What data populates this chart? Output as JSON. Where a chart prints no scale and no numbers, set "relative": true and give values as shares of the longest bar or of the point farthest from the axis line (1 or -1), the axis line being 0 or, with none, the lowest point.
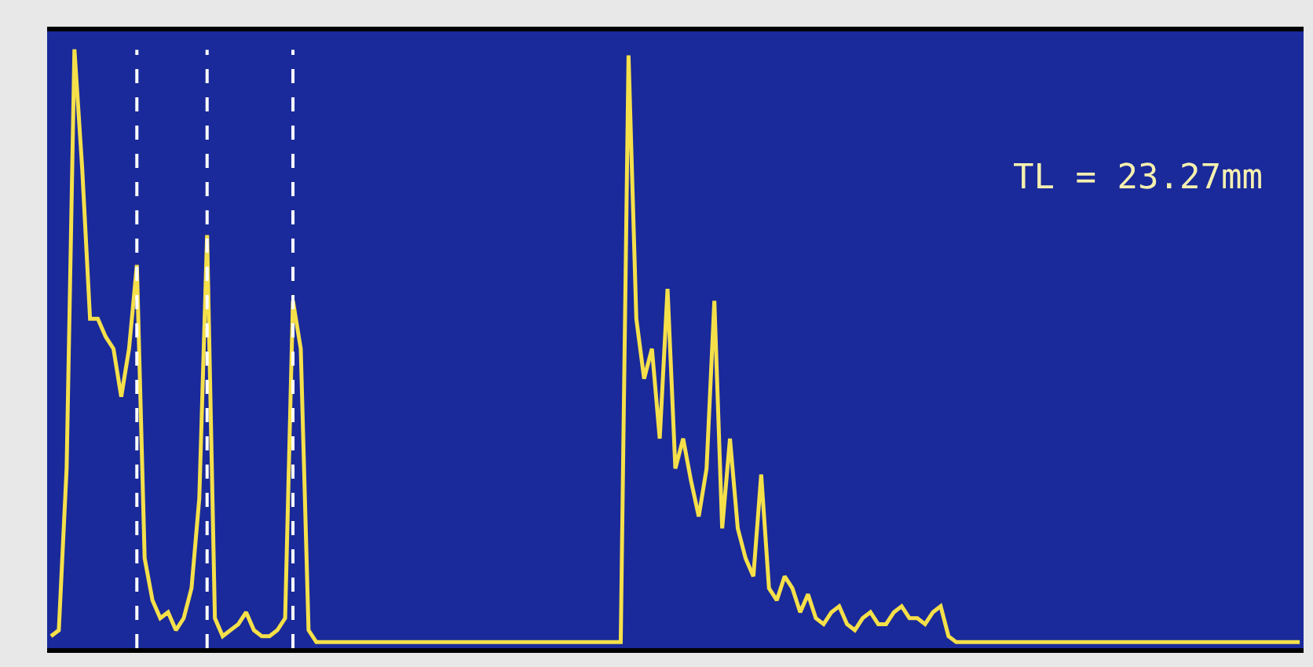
{
  "chart_data": {
    "type": "line",
    "relative": true,
    "annotations": [
      "TL = 23.27mm"
    ],
    "categories": [
      null,
      null,
      null,
      null,
      null,
      null,
      null,
      null,
      null,
      null,
      null,
      null,
      null,
      null,
      null,
      null,
      null,
      null,
      null,
      null,
      null,
      null,
      null,
      null,
      null,
      null,
      null,
      null,
      null,
      null,
      null,
      null,
      null,
      null,
      null,
      null,
      null,
      null,
      null,
      null,
      null,
      null,
      null,
      null,
      null,
      null,
      null,
      null,
      null,
      null,
      null,
      null,
      null,
      null,
      null,
      null,
      null,
      null,
      null,
      null,
      null,
      null,
      null,
      null,
      null,
      null,
      null,
      null,
      null,
      null,
      null,
      null,
      null,
      null,
      null,
      null,
      null,
      null,
      null,
      null,
      null,
      null,
      null,
      null,
      null,
      null,
      null,
      null,
      null,
      null,
      null,
      null,
      null,
      null,
      null,
      null,
      null,
      null,
      null,
      null,
      null,
      null,
      null,
      null,
      null,
      null,
      null,
      null,
      null,
      null,
      null,
      null,
      null,
      null,
      null,
      null,
      null,
      null,
      null,
      null,
      null,
      null,
      null,
      null,
      null,
      null,
      null,
      null,
      null,
      null,
      null,
      null,
      null,
      null,
      null,
      null,
      null,
      null,
      null,
      null,
      null,
      null,
      null,
      null,
      null,
      null,
      null,
      null,
      null,
      null,
      null,
      null,
      null,
      null,
      null,
      null,
      null,
      null,
      null,
      null,
      null
    ],
    "series": [
      {
        "color": "#f5e04a",
        "values": [
          0.02,
          0.03,
          0.3,
          1.0,
          0.8,
          0.55,
          0.55,
          0.52,
          0.5,
          0.42,
          0.5,
          0.64,
          0.15,
          0.08,
          0.05,
          0.06,
          0.03,
          0.05,
          0.1,
          0.25,
          0.69,
          0.05,
          0.02,
          0.03,
          0.04,
          0.06,
          0.03,
          0.02,
          0.02,
          0.03,
          0.05,
          0.58,
          0.5,
          0.03,
          0.01,
          0.01,
          0.01,
          0.01,
          0.01,
          0.01,
          0.01,
          0.01,
          0.01,
          0.01,
          0.01,
          0.01,
          0.01,
          0.01,
          0.01,
          0.01,
          0.01,
          0.01,
          0.01,
          0.01,
          0.01,
          0.01,
          0.01,
          0.01,
          0.01,
          0.01,
          0.01,
          0.01,
          0.01,
          0.01,
          0.01,
          0.01,
          0.01,
          0.01,
          0.01,
          0.01,
          0.01,
          0.01,
          0.01,
          0.01,
          0.99,
          0.55,
          0.45,
          0.5,
          0.35,
          0.6,
          0.3,
          0.35,
          0.28,
          0.22,
          0.3,
          0.58,
          0.2,
          0.35,
          0.2,
          0.15,
          0.12,
          0.29,
          0.1,
          0.08,
          0.12,
          0.1,
          0.06,
          0.09,
          0.05,
          0.04,
          0.06,
          0.07,
          0.04,
          0.03,
          0.05,
          0.06,
          0.04,
          0.04,
          0.06,
          0.07,
          0.05,
          0.05,
          0.04,
          0.06,
          0.07,
          0.02,
          0.01,
          0.01,
          0.01,
          0.01,
          0.01,
          0.01,
          0.01,
          0.01,
          0.01,
          0.01,
          0.01,
          0.01,
          0.01,
          0.01,
          0.01,
          0.01,
          0.01,
          0.01,
          0.01,
          0.01,
          0.01,
          0.01,
          0.01,
          0.01,
          0.01,
          0.01,
          0.01,
          0.01,
          0.01,
          0.01,
          0.01,
          0.01,
          0.01,
          0.01,
          0.01,
          0.01,
          0.01,
          0.01,
          0.01,
          0.01,
          0.01,
          0.01,
          0.01,
          0.01,
          0.01
        ]
      }
    ]
  }
}
